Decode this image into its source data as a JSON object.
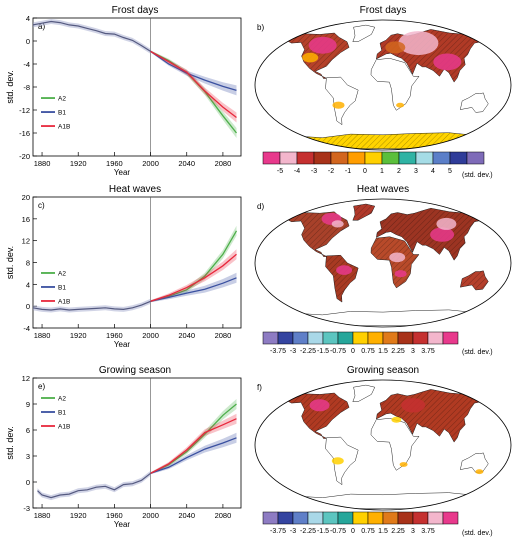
{
  "chart_data": [
    {
      "panel": "a)",
      "type": "line",
      "title": "Frost days",
      "xlabel": "Year",
      "ylabel": "std. dev.",
      "xlim": [
        1870,
        2100
      ],
      "ylim": [
        -20,
        4
      ],
      "xticks": [
        "1880",
        "1920",
        "1960",
        "2000",
        "2040",
        "2080"
      ],
      "yticks": [
        "4",
        "0",
        "-4",
        "-8",
        "-12",
        "-16",
        "-20"
      ],
      "divider_year": 2000,
      "legend": [
        "A2",
        "B1",
        "A1B"
      ],
      "legend_placement": "left",
      "colors": {
        "A2": "#4daf4a",
        "B1": "#3a50a0",
        "A1B": "#e8283c",
        "hist": "#555a80"
      },
      "historical": {
        "x": [
          1870,
          1880,
          1890,
          1900,
          1910,
          1920,
          1930,
          1940,
          1950,
          1960,
          1970,
          1980,
          1990,
          2000
        ],
        "y": [
          2.8,
          3.1,
          3.4,
          3.2,
          2.8,
          2.6,
          2.2,
          1.8,
          1.3,
          1.2,
          0.6,
          0.1,
          -0.8,
          -1.8
        ]
      },
      "series": [
        {
          "name": "A2",
          "x": [
            2000,
            2020,
            2040,
            2060,
            2080,
            2095
          ],
          "y": [
            -1.8,
            -3.4,
            -5.5,
            -8.8,
            -13,
            -16
          ]
        },
        {
          "name": "B1",
          "x": [
            2000,
            2020,
            2040,
            2060,
            2080,
            2095
          ],
          "y": [
            -1.8,
            -4.0,
            -5.6,
            -6.8,
            -7.9,
            -8.6
          ]
        },
        {
          "name": "A1B",
          "x": [
            2000,
            2020,
            2040,
            2060,
            2080,
            2095
          ],
          "y": [
            -1.8,
            -3.6,
            -5.4,
            -8.7,
            -11.5,
            -13.3
          ]
        }
      ]
    },
    {
      "panel": "c)",
      "type": "line",
      "title": "Heat waves",
      "xlabel": "Year",
      "ylabel": "std. dev.",
      "xlim": [
        1870,
        2100
      ],
      "ylim": [
        -4,
        20
      ],
      "xticks": [
        "1880",
        "1920",
        "1960",
        "2000",
        "2040",
        "2080"
      ],
      "yticks": [
        "20",
        "16",
        "12",
        "8",
        "4",
        "0",
        "-4"
      ],
      "divider_year": 2000,
      "legend": [
        "A2",
        "B1",
        "A1B"
      ],
      "legend_placement": "left",
      "colors": {
        "A2": "#4daf4a",
        "B1": "#3a50a0",
        "A1B": "#e8283c",
        "hist": "#555a80"
      },
      "historical": {
        "x": [
          1870,
          1880,
          1890,
          1900,
          1910,
          1920,
          1930,
          1940,
          1950,
          1960,
          1970,
          1980,
          1990,
          2000
        ],
        "y": [
          -0.3,
          -0.6,
          -0.7,
          -0.5,
          -0.7,
          -0.6,
          -0.5,
          -0.4,
          -0.3,
          -0.5,
          -0.6,
          -0.3,
          0.2,
          0.9
        ]
      },
      "series": [
        {
          "name": "A2",
          "x": [
            2000,
            2020,
            2040,
            2060,
            2080,
            2095
          ],
          "y": [
            0.9,
            1.8,
            3.0,
            5.5,
            9.5,
            13.8
          ]
        },
        {
          "name": "B1",
          "x": [
            2000,
            2020,
            2040,
            2060,
            2080,
            2095
          ],
          "y": [
            0.9,
            1.6,
            2.4,
            3.1,
            4.2,
            5.2
          ]
        },
        {
          "name": "A1B",
          "x": [
            2000,
            2020,
            2040,
            2060,
            2080,
            2095
          ],
          "y": [
            0.9,
            2.0,
            3.4,
            5.2,
            7.4,
            9.5
          ]
        }
      ]
    },
    {
      "panel": "e)",
      "type": "line",
      "title": "Growing season",
      "xlabel": "Year",
      "ylabel": "std. dev.",
      "xlim": [
        1870,
        2100
      ],
      "ylim": [
        -3,
        12
      ],
      "xticks": [
        "1880",
        "1920",
        "1960",
        "2000",
        "2040",
        "2080"
      ],
      "yticks": [
        "12",
        "9",
        "6",
        "3",
        "0",
        "-3"
      ],
      "divider_year": 2000,
      "legend": [
        "A2",
        "B1",
        "A1B"
      ],
      "legend_placement": "top-left",
      "colors": {
        "A2": "#4daf4a",
        "B1": "#3a50a0",
        "A1B": "#e8283c",
        "hist": "#555a80"
      },
      "historical": {
        "x": [
          1875,
          1880,
          1890,
          1900,
          1910,
          1920,
          1930,
          1940,
          1950,
          1960,
          1970,
          1980,
          1990,
          2000
        ],
        "y": [
          -1.0,
          -1.5,
          -1.8,
          -1.5,
          -1.4,
          -1.0,
          -0.9,
          -0.6,
          -0.5,
          -0.9,
          -0.3,
          -0.2,
          0.2,
          1.0
        ]
      },
      "series": [
        {
          "name": "A2",
          "x": [
            2000,
            2020,
            2040,
            2060,
            2080,
            2095
          ],
          "y": [
            1.0,
            2.0,
            3.5,
            5.5,
            7.7,
            9.0
          ]
        },
        {
          "name": "B1",
          "x": [
            2000,
            2020,
            2040,
            2060,
            2080,
            2095
          ],
          "y": [
            1.0,
            1.7,
            2.8,
            3.8,
            4.5,
            5.1
          ]
        },
        {
          "name": "A1B",
          "x": [
            2000,
            2020,
            2040,
            2060,
            2080,
            2095
          ],
          "y": [
            1.0,
            2.1,
            3.7,
            5.7,
            6.6,
            7.3
          ]
        }
      ]
    },
    {
      "panel": "b)",
      "type": "heatmap",
      "title": "Frost days",
      "colorbar_labels": [
        "-5",
        "-4",
        "-3",
        "-2",
        "-1",
        "0",
        "1",
        "2",
        "3",
        "4",
        "5"
      ],
      "colorbar_unit": "(std. dev.)",
      "colorbar_colors": [
        "#e8398c",
        "#f3b6cc",
        "#c53030",
        "#a83219",
        "#d2661f",
        "#ff9d00",
        "#ffd000",
        "#5bbf3c",
        "#2fb3a4",
        "#a5dce6",
        "#5b7fc8",
        "#2f3c99",
        "#7e6bb8"
      ]
    },
    {
      "panel": "d)",
      "type": "heatmap",
      "title": "Heat waves",
      "colorbar_labels": [
        "-3.75",
        "-3",
        "-2.25",
        "-1.5",
        "-0.75",
        "0",
        "0.75",
        "1.5",
        "2.25",
        "3",
        "3.75"
      ],
      "colorbar_unit": "(std. dev.)",
      "colorbar_colors": [
        "#8e7cc3",
        "#3444a0",
        "#5f7fc8",
        "#a9d8e8",
        "#5cc5c0",
        "#26a69a",
        "#ffd000",
        "#ffb000",
        "#e07a1a",
        "#a83219",
        "#c53030",
        "#f3b6cc",
        "#e8398c"
      ]
    },
    {
      "panel": "f)",
      "type": "heatmap",
      "title": "Growing season",
      "colorbar_labels": [
        "-3.75",
        "-3",
        "-2.25",
        "-1.5",
        "-0.75",
        "0",
        "0.75",
        "1.5",
        "2.25",
        "3",
        "3.75"
      ],
      "colorbar_unit": "(std. dev.)",
      "colorbar_colors": [
        "#8e7cc3",
        "#3444a0",
        "#5f7fc8",
        "#a9d8e8",
        "#5cc5c0",
        "#26a69a",
        "#ffd000",
        "#ffb000",
        "#e07a1a",
        "#a83219",
        "#c53030",
        "#f3b6cc",
        "#e8398c"
      ]
    }
  ]
}
